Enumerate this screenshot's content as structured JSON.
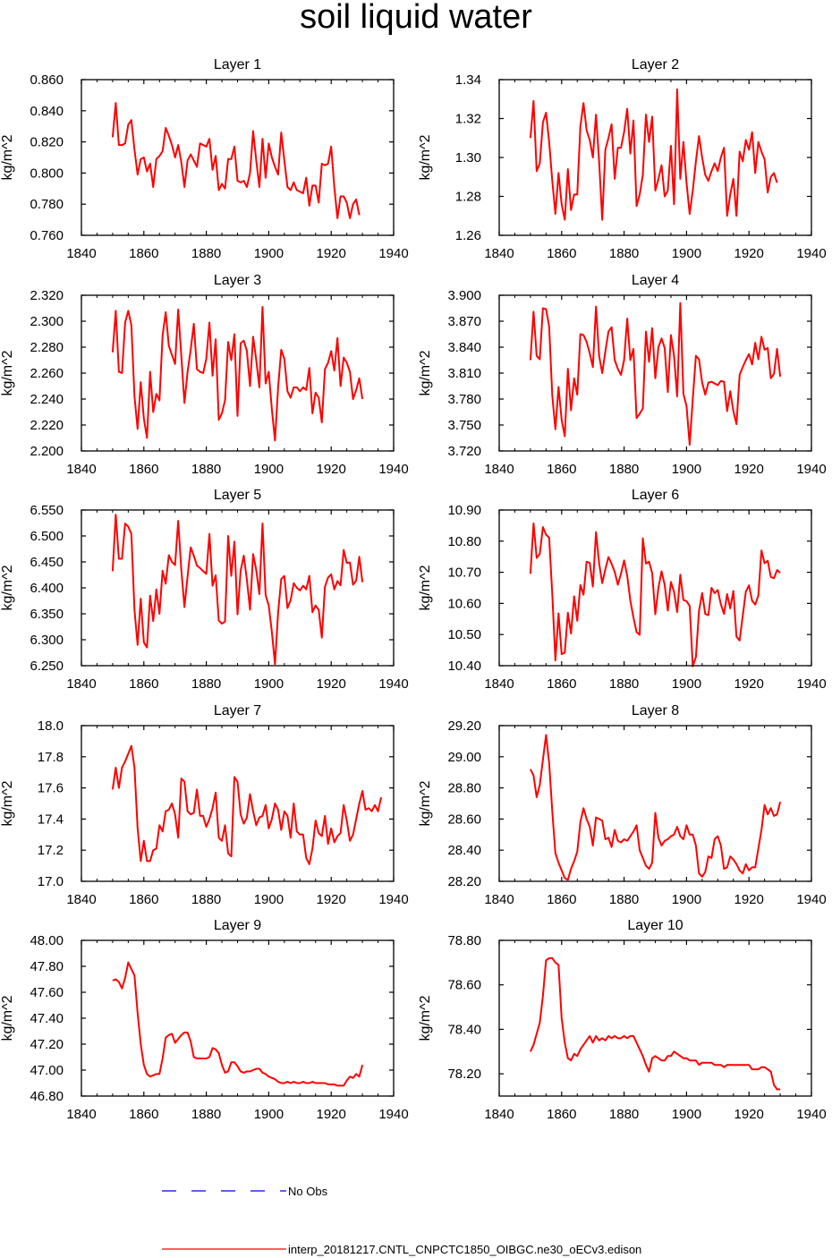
{
  "title": "soil liquid water",
  "legend": {
    "no_obs_label": "No Obs",
    "no_obs_color": "#0000ff",
    "model_label": "interp_20181217.CNTL_CNPCTC1850_OIBGC.ne30_oECv3.edison",
    "model_color": "#ff0000"
  },
  "chart_data": [
    {
      "type": "line",
      "title": "Layer 1",
      "ylabel": "kg/m^2",
      "xlim": [
        1840,
        1940
      ],
      "ylim": [
        0.76,
        0.86
      ],
      "xticks": [
        "1840",
        "1860",
        "1880",
        "1900",
        "1920",
        "1940"
      ],
      "yticks": [
        "0.760",
        "0.780",
        "0.800",
        "0.820",
        "0.840",
        "0.860"
      ],
      "x_start": 1850,
      "values": [
        0.823,
        0.845,
        0.818,
        0.818,
        0.819,
        0.831,
        0.834,
        0.815,
        0.799,
        0.809,
        0.81,
        0.801,
        0.806,
        0.791,
        0.809,
        0.811,
        0.814,
        0.829,
        0.824,
        0.818,
        0.81,
        0.818,
        0.807,
        0.791,
        0.808,
        0.812,
        0.808,
        0.804,
        0.819,
        0.818,
        0.817,
        0.822,
        0.802,
        0.811,
        0.789,
        0.793,
        0.79,
        0.809,
        0.809,
        0.817,
        0.795,
        0.794,
        0.795,
        0.791,
        0.8,
        0.827,
        0.808,
        0.791,
        0.822,
        0.797,
        0.819,
        0.81,
        0.804,
        0.799,
        0.826,
        0.808,
        0.791,
        0.789,
        0.794,
        0.789,
        0.788,
        0.787,
        0.797,
        0.779,
        0.792,
        0.792,
        0.781,
        0.806,
        0.805,
        0.806,
        0.817,
        0.791,
        0.771,
        0.785,
        0.785,
        0.781,
        0.771,
        0.78,
        0.783,
        0.773
      ]
    },
    {
      "type": "line",
      "title": "Layer 2",
      "ylabel": "kg/m^2",
      "xlim": [
        1840,
        1940
      ],
      "ylim": [
        1.26,
        1.34
      ],
      "xticks": [
        "1840",
        "1860",
        "1880",
        "1900",
        "1920",
        "1940"
      ],
      "yticks": [
        "1.26",
        "1.28",
        "1.30",
        "1.32",
        "1.34"
      ],
      "x_start": 1850,
      "values": [
        1.31,
        1.329,
        1.293,
        1.297,
        1.318,
        1.323,
        1.308,
        1.288,
        1.271,
        1.292,
        1.276,
        1.268,
        1.294,
        1.273,
        1.281,
        1.281,
        1.316,
        1.328,
        1.314,
        1.309,
        1.3,
        1.322,
        1.298,
        1.268,
        1.304,
        1.31,
        1.317,
        1.289,
        1.305,
        1.305,
        1.313,
        1.325,
        1.302,
        1.319,
        1.275,
        1.281,
        1.291,
        1.322,
        1.308,
        1.321,
        1.283,
        1.289,
        1.296,
        1.28,
        1.283,
        1.306,
        1.276,
        1.335,
        1.289,
        1.308,
        1.287,
        1.271,
        1.283,
        1.298,
        1.311,
        1.3,
        1.291,
        1.288,
        1.293,
        1.297,
        1.293,
        1.3,
        1.305,
        1.27,
        1.281,
        1.289,
        1.27,
        1.303,
        1.298,
        1.309,
        1.304,
        1.313,
        1.292,
        1.308,
        1.303,
        1.299,
        1.282,
        1.29,
        1.292,
        1.287
      ]
    },
    {
      "type": "line",
      "title": "Layer 3",
      "ylabel": "kg/m^2",
      "xlim": [
        1840,
        1940
      ],
      "ylim": [
        2.2,
        2.32
      ],
      "xticks": [
        "1840",
        "1860",
        "1880",
        "1900",
        "1920",
        "1940"
      ],
      "yticks": [
        "2.200",
        "2.220",
        "2.240",
        "2.260",
        "2.280",
        "2.300",
        "2.320"
      ],
      "x_start": 1850,
      "values": [
        2.276,
        2.308,
        2.261,
        2.26,
        2.299,
        2.308,
        2.297,
        2.242,
        2.217,
        2.253,
        2.225,
        2.21,
        2.261,
        2.23,
        2.244,
        2.239,
        2.289,
        2.307,
        2.281,
        2.274,
        2.267,
        2.309,
        2.273,
        2.237,
        2.261,
        2.278,
        2.298,
        2.263,
        2.261,
        2.26,
        2.271,
        2.299,
        2.258,
        2.286,
        2.224,
        2.229,
        2.239,
        2.284,
        2.27,
        2.29,
        2.227,
        2.283,
        2.285,
        2.277,
        2.25,
        2.288,
        2.27,
        2.249,
        2.311,
        2.252,
        2.261,
        2.232,
        2.208,
        2.249,
        2.278,
        2.271,
        2.246,
        2.241,
        2.249,
        2.249,
        2.246,
        2.249,
        2.247,
        2.264,
        2.229,
        2.245,
        2.241,
        2.222,
        2.263,
        2.268,
        2.277,
        2.262,
        2.287,
        2.25,
        2.272,
        2.268,
        2.261,
        2.24,
        2.247,
        2.256,
        2.24
      ]
    },
    {
      "type": "line",
      "title": "Layer 4",
      "ylabel": "kg/m^2",
      "xlim": [
        1840,
        1940
      ],
      "ylim": [
        3.72,
        3.9
      ],
      "xticks": [
        "1840",
        "1860",
        "1880",
        "1900",
        "1920",
        "1940"
      ],
      "yticks": [
        "3.720",
        "3.750",
        "3.780",
        "3.810",
        "3.840",
        "3.870",
        "3.900"
      ],
      "x_start": 1850,
      "values": [
        3.825,
        3.881,
        3.83,
        3.826,
        3.885,
        3.884,
        3.864,
        3.784,
        3.745,
        3.794,
        3.756,
        3.737,
        3.815,
        3.767,
        3.804,
        3.785,
        3.855,
        3.854,
        3.846,
        3.833,
        3.817,
        3.887,
        3.83,
        3.81,
        3.835,
        3.858,
        3.863,
        3.825,
        3.815,
        3.808,
        3.825,
        3.873,
        3.825,
        3.838,
        3.758,
        3.763,
        3.769,
        3.858,
        3.823,
        3.862,
        3.804,
        3.84,
        3.85,
        3.839,
        3.788,
        3.854,
        3.83,
        3.783,
        3.891,
        3.786,
        3.772,
        3.727,
        3.78,
        3.83,
        3.826,
        3.799,
        3.785,
        3.799,
        3.8,
        3.798,
        3.796,
        3.801,
        3.8,
        3.766,
        3.789,
        3.766,
        3.751,
        3.808,
        3.817,
        3.825,
        3.832,
        3.82,
        3.845,
        3.826,
        3.852,
        3.837,
        3.839,
        3.804,
        3.809,
        3.838,
        3.806
      ]
    },
    {
      "type": "line",
      "title": "Layer 5",
      "ylabel": "kg/m^2",
      "xlim": [
        1840,
        1940
      ],
      "ylim": [
        6.25,
        6.55
      ],
      "xticks": [
        "1840",
        "1860",
        "1880",
        "1900",
        "1920",
        "1940"
      ],
      "yticks": [
        "6.250",
        "6.300",
        "6.350",
        "6.400",
        "6.450",
        "6.500",
        "6.550"
      ],
      "x_start": 1850,
      "values": [
        6.432,
        6.541,
        6.456,
        6.456,
        6.524,
        6.518,
        6.504,
        6.357,
        6.29,
        6.379,
        6.295,
        6.285,
        6.385,
        6.336,
        6.397,
        6.35,
        6.433,
        6.408,
        6.463,
        6.45,
        6.444,
        6.529,
        6.435,
        6.363,
        6.422,
        6.478,
        6.462,
        6.443,
        6.438,
        6.432,
        6.427,
        6.504,
        6.404,
        6.424,
        6.337,
        6.331,
        6.335,
        6.5,
        6.423,
        6.489,
        6.349,
        6.433,
        6.462,
        6.416,
        6.358,
        6.465,
        6.434,
        6.388,
        6.524,
        6.386,
        6.366,
        6.315,
        6.253,
        6.352,
        6.417,
        6.423,
        6.361,
        6.376,
        6.409,
        6.4,
        6.395,
        6.404,
        6.397,
        6.423,
        6.353,
        6.366,
        6.358,
        6.304,
        6.402,
        6.42,
        6.426,
        6.397,
        6.413,
        6.405,
        6.473,
        6.448,
        6.449,
        6.406,
        6.414,
        6.46,
        6.411
      ]
    },
    {
      "type": "line",
      "title": "Layer 6",
      "ylabel": "kg/m^2",
      "xlim": [
        1840,
        1940
      ],
      "ylim": [
        10.4,
        10.9
      ],
      "xticks": [
        "1840",
        "1860",
        "1880",
        "1900",
        "1920",
        "1940"
      ],
      "yticks": [
        "10.40",
        "10.50",
        "10.60",
        "10.70",
        "10.80",
        "10.90"
      ],
      "x_start": 1850,
      "values": [
        10.695,
        10.857,
        10.746,
        10.759,
        10.845,
        10.821,
        10.811,
        10.63,
        10.417,
        10.568,
        10.437,
        10.442,
        10.57,
        10.503,
        10.623,
        10.544,
        10.659,
        10.628,
        10.734,
        10.73,
        10.654,
        10.829,
        10.729,
        10.665,
        10.71,
        10.749,
        10.727,
        10.701,
        10.66,
        10.695,
        10.738,
        10.689,
        10.609,
        10.555,
        10.508,
        10.499,
        10.809,
        10.728,
        10.734,
        10.697,
        10.565,
        10.65,
        10.703,
        10.66,
        10.577,
        10.669,
        10.637,
        10.572,
        10.692,
        10.611,
        10.607,
        10.592,
        10.398,
        10.428,
        10.576,
        10.633,
        10.566,
        10.562,
        10.65,
        10.633,
        10.643,
        10.597,
        10.566,
        10.63,
        10.584,
        10.64,
        10.493,
        10.481,
        10.56,
        10.638,
        10.658,
        10.609,
        10.596,
        10.626,
        10.77,
        10.729,
        10.737,
        10.685,
        10.681,
        10.707,
        10.698
      ]
    },
    {
      "type": "line",
      "title": "Layer 7",
      "ylabel": "kg/m^2",
      "xlim": [
        1840,
        1940
      ],
      "ylim": [
        17.0,
        18.0
      ],
      "xticks": [
        "1840",
        "1860",
        "1880",
        "1900",
        "1920",
        "1940"
      ],
      "yticks": [
        "17.0",
        "17.2",
        "17.4",
        "17.6",
        "17.8",
        "18.0"
      ],
      "x_start": 1850,
      "values": [
        17.59,
        17.73,
        17.6,
        17.73,
        17.77,
        17.82,
        17.87,
        17.73,
        17.34,
        17.13,
        17.26,
        17.13,
        17.13,
        17.2,
        17.21,
        17.36,
        17.32,
        17.45,
        17.46,
        17.5,
        17.43,
        17.28,
        17.66,
        17.64,
        17.45,
        17.43,
        17.44,
        17.59,
        17.42,
        17.42,
        17.35,
        17.4,
        17.47,
        17.57,
        17.28,
        17.26,
        17.36,
        17.18,
        17.16,
        17.67,
        17.64,
        17.43,
        17.37,
        17.41,
        17.56,
        17.45,
        17.36,
        17.41,
        17.42,
        17.49,
        17.34,
        17.4,
        17.5,
        17.46,
        17.33,
        17.45,
        17.42,
        17.28,
        17.5,
        17.32,
        17.3,
        17.3,
        17.15,
        17.11,
        17.21,
        17.39,
        17.31,
        17.29,
        17.42,
        17.24,
        17.34,
        17.25,
        17.29,
        17.31,
        17.49,
        17.39,
        17.26,
        17.3,
        17.4,
        17.5,
        17.58,
        17.46,
        17.47,
        17.45,
        17.49,
        17.45,
        17.54
      ]
    },
    {
      "type": "line",
      "title": "Layer 8",
      "ylabel": "kg/m^2",
      "xlim": [
        1840,
        1940
      ],
      "ylim": [
        28.2,
        29.2
      ],
      "xticks": [
        "1840",
        "1860",
        "1880",
        "1900",
        "1920",
        "1940"
      ],
      "yticks": [
        "28.20",
        "28.40",
        "28.60",
        "28.80",
        "29.00",
        "29.20"
      ],
      "x_start": 1850,
      "values": [
        28.92,
        28.88,
        28.74,
        28.82,
        28.98,
        29.14,
        28.96,
        28.65,
        28.38,
        28.32,
        28.27,
        28.22,
        28.21,
        28.28,
        28.33,
        28.39,
        28.58,
        28.67,
        28.6,
        28.55,
        28.43,
        28.61,
        28.6,
        28.59,
        28.47,
        28.48,
        28.42,
        28.53,
        28.46,
        28.45,
        28.47,
        28.46,
        28.49,
        28.52,
        28.56,
        28.4,
        28.35,
        28.3,
        28.28,
        28.32,
        28.64,
        28.48,
        28.43,
        28.46,
        28.47,
        28.49,
        28.5,
        28.55,
        28.49,
        28.47,
        28.56,
        28.5,
        28.5,
        28.43,
        28.25,
        28.23,
        28.26,
        28.36,
        28.35,
        28.47,
        28.49,
        28.43,
        28.28,
        28.29,
        28.36,
        28.34,
        28.31,
        28.27,
        28.25,
        28.31,
        28.27,
        28.29,
        28.29,
        28.41,
        28.53,
        28.69,
        28.63,
        28.67,
        28.62,
        28.63,
        28.71
      ]
    },
    {
      "type": "line",
      "title": "Layer 9",
      "ylabel": "kg/m^2",
      "xlim": [
        1840,
        1940
      ],
      "ylim": [
        46.8,
        48.0
      ],
      "xticks": [
        "1840",
        "1860",
        "1880",
        "1900",
        "1920",
        "1940"
      ],
      "yticks": [
        "46.80",
        "47.00",
        "47.20",
        "47.40",
        "47.60",
        "47.80",
        "48.00"
      ],
      "x_start": 1850,
      "values": [
        47.69,
        47.7,
        47.68,
        47.63,
        47.71,
        47.83,
        47.78,
        47.73,
        47.44,
        47.2,
        47.04,
        46.97,
        46.95,
        46.96,
        46.97,
        46.97,
        47.09,
        47.25,
        47.27,
        47.28,
        47.21,
        47.24,
        47.27,
        47.29,
        47.29,
        47.22,
        47.1,
        47.09,
        47.09,
        47.09,
        47.09,
        47.1,
        47.17,
        47.16,
        47.13,
        47.04,
        46.98,
        46.99,
        47.06,
        47.06,
        47.03,
        46.99,
        46.98,
        46.99,
        46.99,
        47.0,
        47.01,
        47.01,
        46.98,
        46.97,
        46.95,
        46.94,
        46.93,
        46.91,
        46.9,
        46.9,
        46.91,
        46.9,
        46.91,
        46.9,
        46.9,
        46.91,
        46.9,
        46.9,
        46.91,
        46.9,
        46.9,
        46.9,
        46.9,
        46.89,
        46.89,
        46.89,
        46.88,
        46.88,
        46.88,
        46.92,
        46.95,
        46.94,
        46.97,
        46.95,
        47.04
      ]
    },
    {
      "type": "line",
      "title": "Layer 10",
      "ylabel": "kg/m^2",
      "xlim": [
        1840,
        1940
      ],
      "ylim": [
        78.1,
        78.8
      ],
      "xticks": [
        "1840",
        "1860",
        "1880",
        "1900",
        "1920",
        "1940"
      ],
      "yticks": [
        "78.20",
        "78.40",
        "78.60",
        "78.80"
      ],
      "x_start": 1850,
      "values": [
        78.3,
        78.33,
        78.38,
        78.43,
        78.55,
        78.71,
        78.72,
        78.72,
        78.7,
        78.69,
        78.45,
        78.34,
        78.27,
        78.26,
        78.29,
        78.28,
        78.31,
        78.33,
        78.35,
        78.37,
        78.34,
        78.37,
        78.35,
        78.36,
        78.35,
        78.37,
        78.36,
        78.37,
        78.36,
        78.36,
        78.37,
        78.36,
        78.37,
        78.37,
        78.34,
        78.31,
        78.28,
        78.24,
        78.21,
        78.27,
        78.28,
        78.27,
        78.26,
        78.26,
        78.28,
        78.28,
        78.3,
        78.29,
        78.28,
        78.27,
        78.27,
        78.26,
        78.26,
        78.26,
        78.24,
        78.25,
        78.25,
        78.25,
        78.25,
        78.24,
        78.24,
        78.24,
        78.23,
        78.24,
        78.24,
        78.24,
        78.24,
        78.24,
        78.24,
        78.24,
        78.24,
        78.22,
        78.22,
        78.22,
        78.23,
        78.23,
        78.22,
        78.21,
        78.15,
        78.13,
        78.13
      ]
    }
  ]
}
